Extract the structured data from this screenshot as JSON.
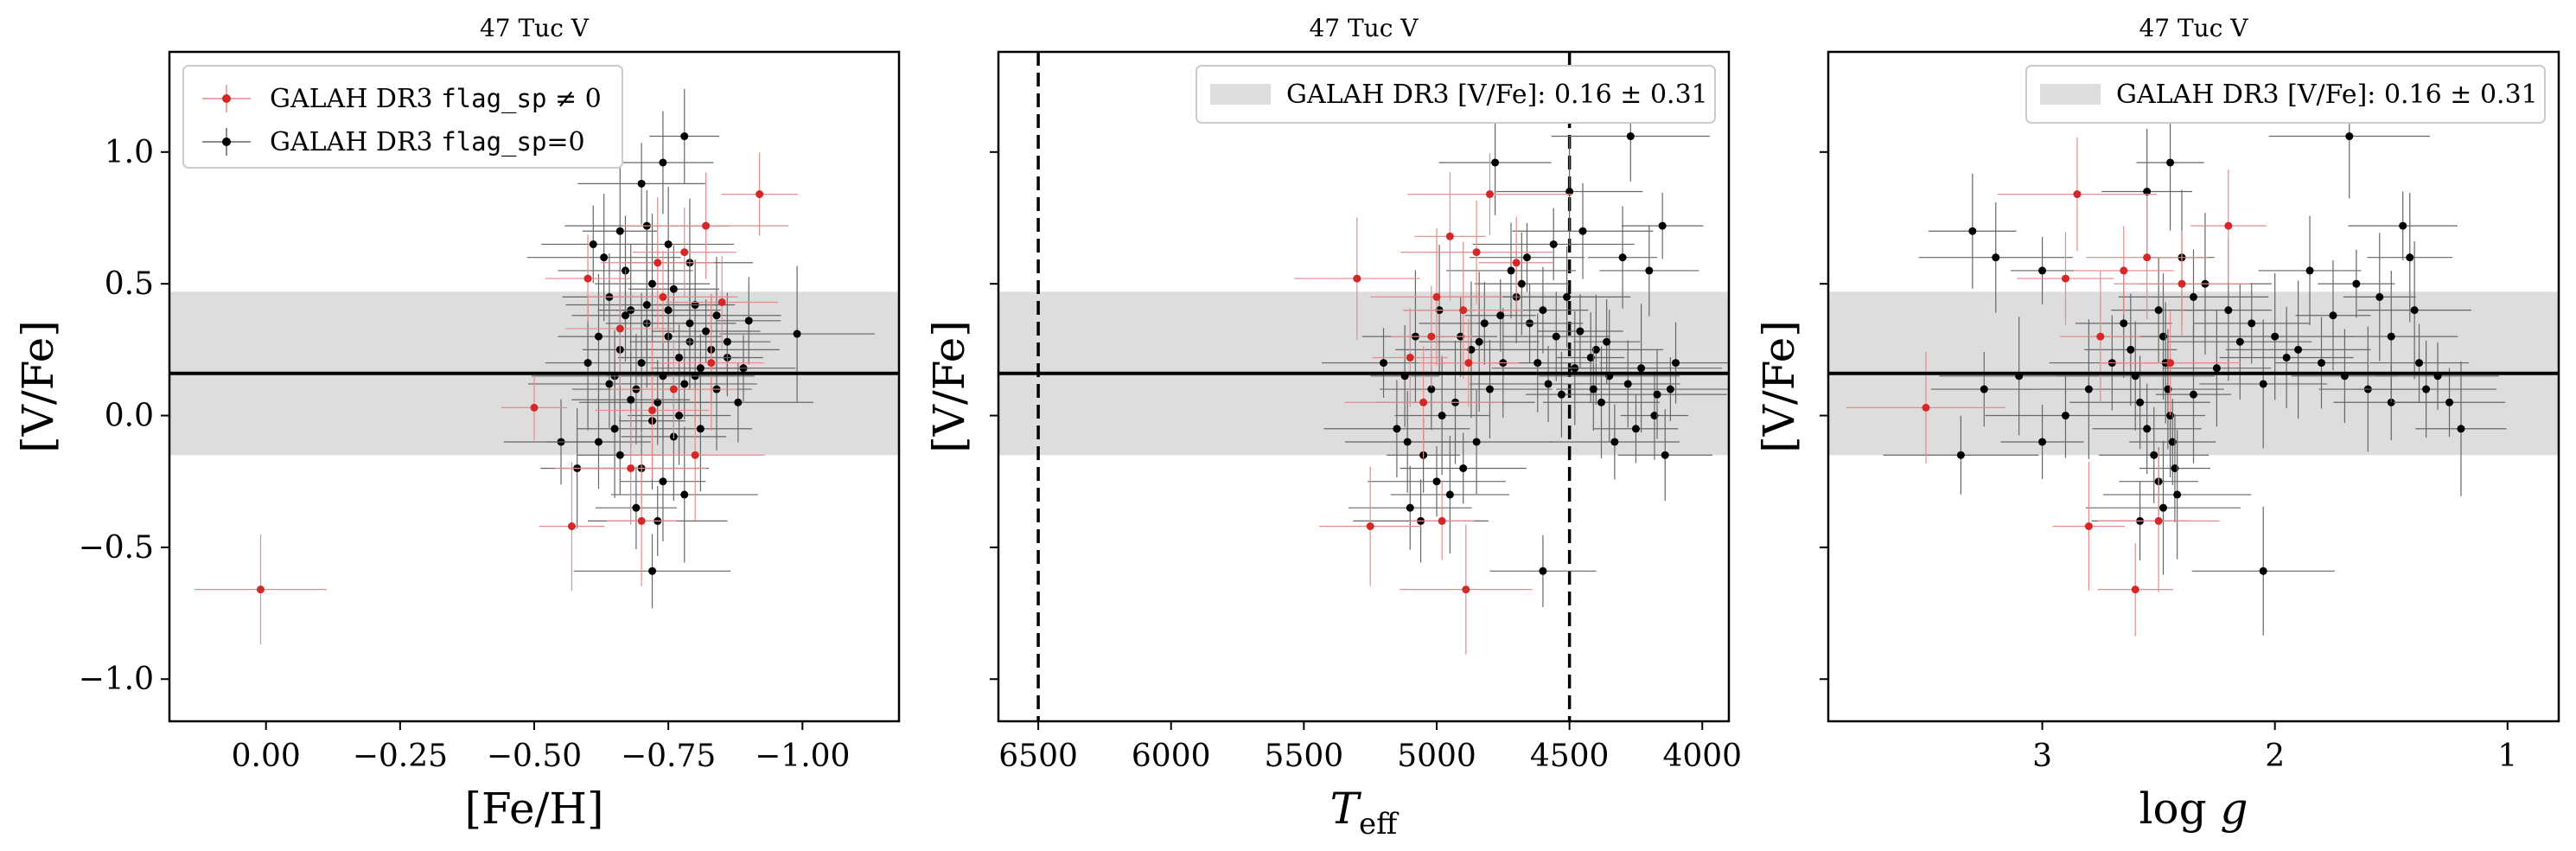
{
  "chart_data": [
    {
      "type": "scatter",
      "title": "47 Tuc V",
      "xlabel": "[Fe/H]",
      "ylabel": "[V/Fe]",
      "xlim": [
        0.18,
        -1.18
      ],
      "ylim": [
        -1.16,
        1.38
      ],
      "xticks": [
        0.0,
        -0.25,
        -0.5,
        -0.75,
        -1.0
      ],
      "xtick_labels": [
        "0.00",
        "−0.25",
        "−0.50",
        "−0.75",
        "−1.00"
      ],
      "yticks": [
        1.0,
        0.5,
        0.0,
        -0.5,
        -1.0
      ],
      "ytick_labels": [
        "1.0",
        "0.5",
        "0.0",
        "−0.5",
        "−1.0"
      ],
      "show_ytick_labels": true,
      "reference_mean": 0.16,
      "reference_sigma": 0.31,
      "vlines": [],
      "legend": {
        "placement": "upper-left",
        "entries": [
          {
            "prefix": "GALAH DR3 ",
            "mono": "flag_sp",
            "suffix": " ≠ 0",
            "color": "#d62728"
          },
          {
            "prefix": "GALAH DR3 ",
            "mono": "flag_sp",
            "suffix": "=0",
            "color": "#000000"
          }
        ]
      },
      "series": [
        {
          "name": "GALAH DR3 flag_sp ≠ 0",
          "color": "#d62728",
          "points": [
            [
              0.01,
              -0.66
            ],
            [
              -0.6,
              0.52
            ],
            [
              -0.57,
              -0.42
            ],
            [
              -0.5,
              0.03
            ],
            [
              -0.92,
              0.84
            ],
            [
              -0.82,
              0.72
            ],
            [
              -0.78,
              0.62
            ],
            [
              -0.73,
              0.58
            ],
            [
              -0.85,
              0.43
            ],
            [
              -0.7,
              -0.4
            ],
            [
              -0.76,
              0.1
            ],
            [
              -0.68,
              -0.2
            ],
            [
              -0.83,
              0.2
            ],
            [
              -0.74,
              0.45
            ],
            [
              -0.66,
              0.33
            ],
            [
              -0.8,
              -0.15
            ],
            [
              -0.72,
              0.02
            ]
          ]
        },
        {
          "name": "GALAH DR3 flag_sp=0",
          "color": "#000000",
          "points": [
            [
              -0.99,
              0.31
            ],
            [
              -0.78,
              1.06
            ],
            [
              -0.72,
              -0.59
            ],
            [
              -0.74,
              0.96
            ],
            [
              -0.7,
              0.88
            ],
            [
              -0.66,
              0.7
            ],
            [
              -0.61,
              0.65
            ],
            [
              -0.55,
              -0.1
            ],
            [
              -0.58,
              -0.2
            ],
            [
              -0.64,
              0.45
            ],
            [
              -0.68,
              0.4
            ],
            [
              -0.71,
              0.35
            ],
            [
              -0.75,
              0.3
            ],
            [
              -0.79,
              0.28
            ],
            [
              -0.83,
              0.25
            ],
            [
              -0.86,
              0.22
            ],
            [
              -0.89,
              0.18
            ],
            [
              -0.65,
              0.15
            ],
            [
              -0.69,
              0.1
            ],
            [
              -0.73,
              0.05
            ],
            [
              -0.77,
              0.0
            ],
            [
              -0.81,
              -0.05
            ],
            [
              -0.62,
              -0.1
            ],
            [
              -0.66,
              -0.15
            ],
            [
              -0.7,
              -0.2
            ],
            [
              -0.74,
              -0.25
            ],
            [
              -0.78,
              -0.3
            ],
            [
              -0.63,
              0.6
            ],
            [
              -0.67,
              0.55
            ],
            [
              -0.72,
              0.5
            ],
            [
              -0.76,
              0.48
            ],
            [
              -0.8,
              0.42
            ],
            [
              -0.84,
              0.38
            ],
            [
              -0.6,
              0.2
            ],
            [
              -0.64,
              0.12
            ],
            [
              -0.68,
              0.06
            ],
            [
              -0.72,
              -0.02
            ],
            [
              -0.76,
              -0.08
            ],
            [
              -0.8,
              0.15
            ],
            [
              -0.84,
              0.1
            ],
            [
              -0.88,
              0.05
            ],
            [
              -0.71,
              0.72
            ],
            [
              -0.75,
              0.65
            ],
            [
              -0.79,
              0.58
            ],
            [
              -0.62,
              0.3
            ],
            [
              -0.66,
              0.25
            ],
            [
              -0.7,
              0.2
            ],
            [
              -0.74,
              0.15
            ],
            [
              -0.78,
              0.12
            ],
            [
              -0.82,
              0.32
            ],
            [
              -0.86,
              0.28
            ],
            [
              -0.9,
              0.36
            ],
            [
              -0.69,
              -0.35
            ],
            [
              -0.73,
              -0.4
            ],
            [
              -0.65,
              -0.05
            ],
            [
              -0.77,
              0.22
            ],
            [
              -0.81,
              0.18
            ],
            [
              -0.67,
              0.38
            ],
            [
              -0.71,
              0.42
            ],
            [
              -0.75,
              0.4
            ],
            [
              -0.79,
              0.35
            ]
          ]
        }
      ]
    },
    {
      "type": "scatter",
      "title": "47 Tuc V",
      "xlabel": "T_eff",
      "ylabel": "[V/Fe]",
      "xlim": [
        6650,
        3900
      ],
      "ylim": [
        -1.16,
        1.38
      ],
      "xticks": [
        6500,
        6000,
        5500,
        5000,
        4500,
        4000
      ],
      "xtick_labels": [
        "6500",
        "6000",
        "5500",
        "5000",
        "4500",
        "4000"
      ],
      "yticks": [
        1.0,
        0.5,
        0.0,
        -0.5,
        -1.0
      ],
      "ytick_labels": [
        "1.0",
        "0.5",
        "0.0",
        "−0.5",
        "−1.0"
      ],
      "show_ytick_labels": false,
      "reference_mean": 0.16,
      "reference_sigma": 0.31,
      "vlines": [
        6500,
        4500
      ],
      "legend": {
        "placement": "upper-right",
        "entries": [
          {
            "prefix": "GALAH DR3 [V/Fe]: ",
            "mono": "",
            "suffix": "0.16 ± 0.31",
            "color": "#dddddd",
            "patch": true
          }
        ]
      },
      "series": [
        {
          "name": "GALAH DR3 flag_sp ≠ 0",
          "color": "#d62728",
          "points": [
            [
              5300,
              0.52
            ],
            [
              5250,
              -0.42
            ],
            [
              4890,
              -0.66
            ],
            [
              4800,
              0.84
            ],
            [
              4950,
              0.68
            ],
            [
              4850,
              0.62
            ],
            [
              5000,
              0.45
            ],
            [
              4900,
              0.4
            ],
            [
              5050,
              0.05
            ],
            [
              4980,
              -0.4
            ],
            [
              4700,
              0.58
            ],
            [
              5020,
              0.3
            ],
            [
              4880,
              0.2
            ],
            [
              5100,
              0.22
            ]
          ]
        },
        {
          "name": "GALAH DR3 flag_sp=0",
          "color": "#000000",
          "points": [
            [
              4270,
              1.06
            ],
            [
              4600,
              -0.59
            ],
            [
              4780,
              0.96
            ],
            [
              4500,
              0.85
            ],
            [
              4450,
              0.7
            ],
            [
              4300,
              0.6
            ],
            [
              4200,
              0.55
            ],
            [
              4150,
              0.72
            ],
            [
              4100,
              0.2
            ],
            [
              4120,
              0.1
            ],
            [
              4180,
              0.0
            ],
            [
              4250,
              -0.05
            ],
            [
              4350,
              0.15
            ],
            [
              4400,
              0.25
            ],
            [
              4550,
              0.3
            ],
            [
              4600,
              0.4
            ],
            [
              4650,
              0.35
            ],
            [
              4700,
              0.45
            ],
            [
              4750,
              0.2
            ],
            [
              4800,
              0.1
            ],
            [
              4850,
              -0.1
            ],
            [
              4900,
              -0.2
            ],
            [
              4950,
              -0.3
            ],
            [
              5000,
              -0.25
            ],
            [
              5050,
              -0.15
            ],
            [
              5100,
              -0.35
            ],
            [
              5150,
              -0.05
            ],
            [
              5200,
              0.2
            ],
            [
              5120,
              0.15
            ],
            [
              5080,
              0.3
            ],
            [
              5020,
              0.1
            ],
            [
              4980,
              0.0
            ],
            [
              4930,
              0.05
            ],
            [
              4870,
              0.25
            ],
            [
              4820,
              0.35
            ],
            [
              4720,
              0.55
            ],
            [
              4680,
              0.5
            ],
            [
              4620,
              0.2
            ],
            [
              4580,
              0.12
            ],
            [
              4530,
              0.08
            ],
            [
              4480,
              0.18
            ],
            [
              4420,
              0.22
            ],
            [
              4380,
              0.05
            ],
            [
              4330,
              -0.1
            ],
            [
              4280,
              0.12
            ],
            [
              4230,
              0.18
            ],
            [
              4170,
              0.08
            ],
            [
              4140,
              -0.15
            ],
            [
              5060,
              -0.4
            ],
            [
              5110,
              -0.1
            ],
            [
              4990,
              0.4
            ],
            [
              4910,
              0.3
            ],
            [
              4840,
              0.28
            ],
            [
              4760,
              0.38
            ],
            [
              4660,
              0.6
            ],
            [
              4560,
              0.65
            ],
            [
              4510,
              0.45
            ],
            [
              4460,
              0.32
            ],
            [
              4410,
              0.1
            ],
            [
              4360,
              0.28
            ]
          ]
        }
      ]
    },
    {
      "type": "scatter",
      "title": "47 Tuc V",
      "xlabel": "log g",
      "ylabel": "[V/Fe]",
      "xlim": [
        3.92,
        0.78
      ],
      "ylim": [
        -1.16,
        1.38
      ],
      "xticks": [
        3,
        2,
        1
      ],
      "xtick_labels": [
        "3",
        "2",
        "1"
      ],
      "yticks": [
        1.0,
        0.5,
        0.0,
        -0.5,
        -1.0
      ],
      "ytick_labels": [
        "1.0",
        "0.5",
        "0.0",
        "−0.5",
        "−1.0"
      ],
      "show_ytick_labels": false,
      "reference_mean": 0.16,
      "reference_sigma": 0.31,
      "vlines": [],
      "legend": {
        "placement": "upper-right",
        "entries": [
          {
            "prefix": "GALAH DR3 [V/Fe]: ",
            "mono": "",
            "suffix": "0.16 ± 0.31",
            "color": "#dddddd",
            "patch": true
          }
        ]
      },
      "series": [
        {
          "name": "GALAH DR3 flag_sp ≠ 0",
          "color": "#d62728",
          "points": [
            [
              3.5,
              0.03
            ],
            [
              2.8,
              -0.42
            ],
            [
              2.6,
              -0.66
            ],
            [
              2.85,
              0.84
            ],
            [
              2.2,
              0.72
            ],
            [
              2.55,
              0.6
            ],
            [
              2.65,
              0.55
            ],
            [
              2.4,
              0.5
            ],
            [
              2.9,
              0.52
            ],
            [
              2.5,
              -0.4
            ],
            [
              2.75,
              0.3
            ],
            [
              2.45,
              0.2
            ]
          ]
        },
        {
          "name": "GALAH DR3 flag_sp=0",
          "color": "#000000",
          "points": [
            [
              1.68,
              1.06
            ],
            [
              2.05,
              -0.59
            ],
            [
              2.45,
              0.96
            ],
            [
              3.3,
              0.7
            ],
            [
              3.2,
              0.6
            ],
            [
              3.0,
              0.55
            ],
            [
              2.5,
              0.4
            ],
            [
              2.48,
              0.3
            ],
            [
              2.47,
              0.2
            ],
            [
              2.46,
              0.1
            ],
            [
              2.45,
              0.0
            ],
            [
              2.44,
              -0.1
            ],
            [
              2.43,
              -0.2
            ],
            [
              2.42,
              -0.3
            ],
            [
              2.5,
              -0.25
            ],
            [
              2.52,
              -0.15
            ],
            [
              2.55,
              -0.05
            ],
            [
              2.58,
              0.05
            ],
            [
              2.6,
              0.15
            ],
            [
              2.62,
              0.25
            ],
            [
              2.65,
              0.35
            ],
            [
              2.35,
              0.45
            ],
            [
              2.3,
              0.5
            ],
            [
              2.2,
              0.4
            ],
            [
              2.1,
              0.35
            ],
            [
              2.0,
              0.3
            ],
            [
              1.9,
              0.25
            ],
            [
              1.8,
              0.2
            ],
            [
              1.7,
              0.15
            ],
            [
              1.6,
              0.1
            ],
            [
              1.5,
              0.05
            ],
            [
              1.45,
              0.72
            ],
            [
              1.42,
              0.6
            ],
            [
              1.4,
              0.4
            ],
            [
              1.38,
              0.2
            ],
            [
              1.35,
              0.1
            ],
            [
              1.3,
              0.15
            ],
            [
              1.25,
              0.05
            ],
            [
              1.2,
              -0.05
            ],
            [
              1.55,
              0.45
            ],
            [
              1.65,
              0.5
            ],
            [
              1.75,
              0.38
            ],
            [
              1.85,
              0.55
            ],
            [
              1.95,
              0.22
            ],
            [
              2.05,
              0.12
            ],
            [
              2.15,
              0.28
            ],
            [
              2.25,
              0.18
            ],
            [
              2.35,
              0.08
            ],
            [
              2.7,
              0.2
            ],
            [
              2.8,
              0.1
            ],
            [
              2.9,
              0.0
            ],
            [
              3.0,
              -0.1
            ],
            [
              3.1,
              0.15
            ],
            [
              3.25,
              0.1
            ],
            [
              3.35,
              -0.15
            ],
            [
              2.58,
              -0.4
            ],
            [
              2.48,
              -0.35
            ],
            [
              2.4,
              0.6
            ],
            [
              2.55,
              0.85
            ],
            [
              1.5,
              0.3
            ]
          ]
        }
      ]
    }
  ]
}
